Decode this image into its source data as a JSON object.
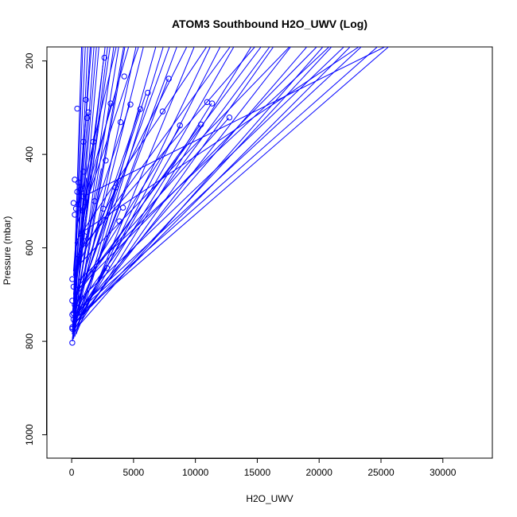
{
  "chart_data": {
    "type": "line",
    "title": "ATOM3 Southbound H2O_UWV (Log)",
    "xlabel": "H2O_UWV",
    "ylabel": "Pressure (mbar)",
    "xlim": [
      -2000,
      34000
    ],
    "ylim": [
      1050,
      170
    ],
    "y_reversed": true,
    "xticks": [
      0,
      5000,
      10000,
      15000,
      20000,
      25000,
      30000
    ],
    "yticks": [
      200,
      400,
      600,
      800,
      1000
    ],
    "grid": false,
    "legend": "none",
    "colors": {
      "series": "#0000ff",
      "axis": "#000000",
      "background": "#ffffff"
    },
    "points": [
      [
        2650,
        193
      ],
      [
        4250,
        233
      ],
      [
        7850,
        238
      ],
      [
        6150,
        268
      ],
      [
        1150,
        283
      ],
      [
        10950,
        288
      ],
      [
        11350,
        291
      ],
      [
        3150,
        291
      ],
      [
        4750,
        293
      ],
      [
        5550,
        303
      ],
      [
        450,
        302
      ],
      [
        7350,
        308
      ],
      [
        1350,
        310
      ],
      [
        1250,
        322
      ],
      [
        12750,
        321
      ],
      [
        3950,
        331
      ],
      [
        10450,
        336
      ],
      [
        8750,
        338
      ],
      [
        1750,
        373
      ],
      [
        950,
        373
      ],
      [
        2750,
        413
      ],
      [
        950,
        437
      ],
      [
        250,
        454
      ],
      [
        550,
        460
      ],
      [
        750,
        475
      ],
      [
        3550,
        471
      ],
      [
        450,
        480
      ],
      [
        950,
        490
      ],
      [
        1850,
        500
      ],
      [
        1150,
        503
      ],
      [
        150,
        504
      ],
      [
        550,
        507
      ],
      [
        2550,
        516
      ],
      [
        4150,
        514
      ],
      [
        350,
        516
      ],
      [
        850,
        520
      ],
      [
        250,
        529
      ],
      [
        3850,
        543
      ],
      [
        1050,
        575
      ],
      [
        2850,
        643
      ],
      [
        50,
        667
      ],
      [
        150,
        683
      ],
      [
        50,
        713
      ],
      [
        250,
        722
      ],
      [
        150,
        740
      ],
      [
        50,
        743
      ],
      [
        550,
        748
      ],
      [
        150,
        753
      ],
      [
        50,
        770
      ],
      [
        50,
        773
      ],
      [
        50,
        803
      ]
    ],
    "segments": [
      [
        [
          50,
          800
        ],
        [
          5200,
          170
        ]
      ],
      [
        [
          150,
          795
        ],
        [
          4300,
          170
        ]
      ],
      [
        [
          50,
          795
        ],
        [
          3400,
          170
        ]
      ],
      [
        [
          250,
          790
        ],
        [
          6800,
          170
        ]
      ],
      [
        [
          150,
          790
        ],
        [
          2200,
          170
        ]
      ],
      [
        [
          50,
          785
        ],
        [
          2700,
          170
        ]
      ],
      [
        [
          350,
          785
        ],
        [
          9900,
          170
        ]
      ],
      [
        [
          150,
          780
        ],
        [
          12000,
          170
        ]
      ],
      [
        [
          250,
          780
        ],
        [
          14500,
          170
        ]
      ],
      [
        [
          50,
          780
        ],
        [
          1500,
          170
        ]
      ],
      [
        [
          450,
          775
        ],
        [
          7400,
          170
        ]
      ],
      [
        [
          150,
          775
        ],
        [
          1800,
          170
        ]
      ],
      [
        [
          250,
          770
        ],
        [
          4200,
          170
        ]
      ],
      [
        [
          350,
          770
        ],
        [
          11200,
          170
        ]
      ],
      [
        [
          450,
          770
        ],
        [
          20300,
          170
        ]
      ],
      [
        [
          150,
          765
        ],
        [
          3800,
          170
        ]
      ],
      [
        [
          250,
          765
        ],
        [
          8500,
          170
        ]
      ],
      [
        [
          550,
          760
        ],
        [
          16300,
          170
        ]
      ],
      [
        [
          350,
          760
        ],
        [
          17700,
          170
        ]
      ],
      [
        [
          150,
          760
        ],
        [
          900,
          170
        ]
      ],
      [
        [
          450,
          755
        ],
        [
          22500,
          170
        ]
      ],
      [
        [
          250,
          755
        ],
        [
          5800,
          170
        ]
      ],
      [
        [
          650,
          750
        ],
        [
          21000,
          170
        ]
      ],
      [
        [
          350,
          750
        ],
        [
          25600,
          170
        ]
      ],
      [
        [
          150,
          750
        ],
        [
          2000,
          170
        ]
      ],
      [
        [
          550,
          745
        ],
        [
          13100,
          170
        ]
      ],
      [
        [
          250,
          745
        ],
        [
          1300,
          170
        ]
      ],
      [
        [
          450,
          740
        ],
        [
          19000,
          170
        ]
      ],
      [
        [
          350,
          740
        ],
        [
          24700,
          170
        ]
      ],
      [
        [
          150,
          735
        ],
        [
          1100,
          170
        ]
      ],
      [
        [
          550,
          730
        ],
        [
          23400,
          170
        ]
      ],
      [
        [
          250,
          730
        ],
        [
          7900,
          170
        ]
      ],
      [
        [
          450,
          725
        ],
        [
          16000,
          170
        ]
      ],
      [
        [
          350,
          720
        ],
        [
          2900,
          170
        ]
      ],
      [
        [
          150,
          715
        ],
        [
          800,
          170
        ]
      ],
      [
        [
          650,
          710
        ],
        [
          22000,
          170
        ]
      ],
      [
        [
          250,
          700
        ],
        [
          15300,
          170
        ]
      ],
      [
        [
          450,
          690
        ],
        [
          19800,
          170
        ]
      ],
      [
        [
          350,
          680
        ],
        [
          3100,
          170
        ]
      ],
      [
        [
          550,
          670
        ],
        [
          20800,
          170
        ]
      ],
      [
        [
          150,
          660
        ],
        [
          1600,
          170
        ]
      ],
      [
        [
          250,
          650
        ],
        [
          9300,
          170
        ]
      ],
      [
        [
          450,
          640
        ],
        [
          17600,
          170
        ]
      ],
      [
        [
          350,
          620
        ],
        [
          12800,
          170
        ]
      ],
      [
        [
          750,
          600
        ],
        [
          14800,
          170
        ]
      ],
      [
        [
          250,
          590
        ],
        [
          10900,
          170
        ]
      ],
      [
        [
          650,
          570
        ],
        [
          23200,
          170
        ]
      ],
      [
        [
          450,
          550
        ],
        [
          4600,
          170
        ]
      ],
      [
        [
          850,
          530
        ],
        [
          5400,
          170
        ]
      ],
      [
        [
          550,
          510
        ],
        [
          3600,
          170
        ]
      ],
      [
        [
          950,
          490
        ],
        [
          25300,
          170
        ]
      ],
      [
        [
          150,
          700
        ],
        [
          1800,
          360
        ]
      ],
      [
        [
          250,
          730
        ],
        [
          2400,
          430
        ]
      ],
      [
        [
          50,
          770
        ],
        [
          1200,
          450
        ]
      ],
      [
        [
          450,
          720
        ],
        [
          3600,
          470
        ]
      ],
      [
        [
          150,
          745
        ],
        [
          6000,
          270
        ]
      ],
      [
        [
          350,
          700
        ],
        [
          8800,
          340
        ]
      ],
      [
        [
          50,
          760
        ],
        [
          4000,
          515
        ]
      ],
      [
        [
          250,
          690
        ],
        [
          12700,
          322
        ]
      ],
      [
        [
          550,
          740
        ],
        [
          2850,
          643
        ]
      ],
      [
        [
          150,
          650
        ],
        [
          950,
          373
        ]
      ],
      [
        [
          350,
          600
        ],
        [
          3200,
          290
        ]
      ],
      [
        [
          50,
          740
        ],
        [
          2600,
          193
        ]
      ],
      [
        [
          250,
          760
        ],
        [
          7800,
          238
        ]
      ],
      [
        [
          450,
          700
        ],
        [
          10400,
          336
        ]
      ],
      [
        [
          150,
          730
        ],
        [
          1300,
          310
        ]
      ],
      [
        [
          650,
          620
        ],
        [
          4700,
          293
        ]
      ],
      [
        [
          350,
          760
        ],
        [
          11300,
          291
        ]
      ],
      [
        [
          250,
          710
        ],
        [
          5500,
          303
        ]
      ]
    ]
  }
}
